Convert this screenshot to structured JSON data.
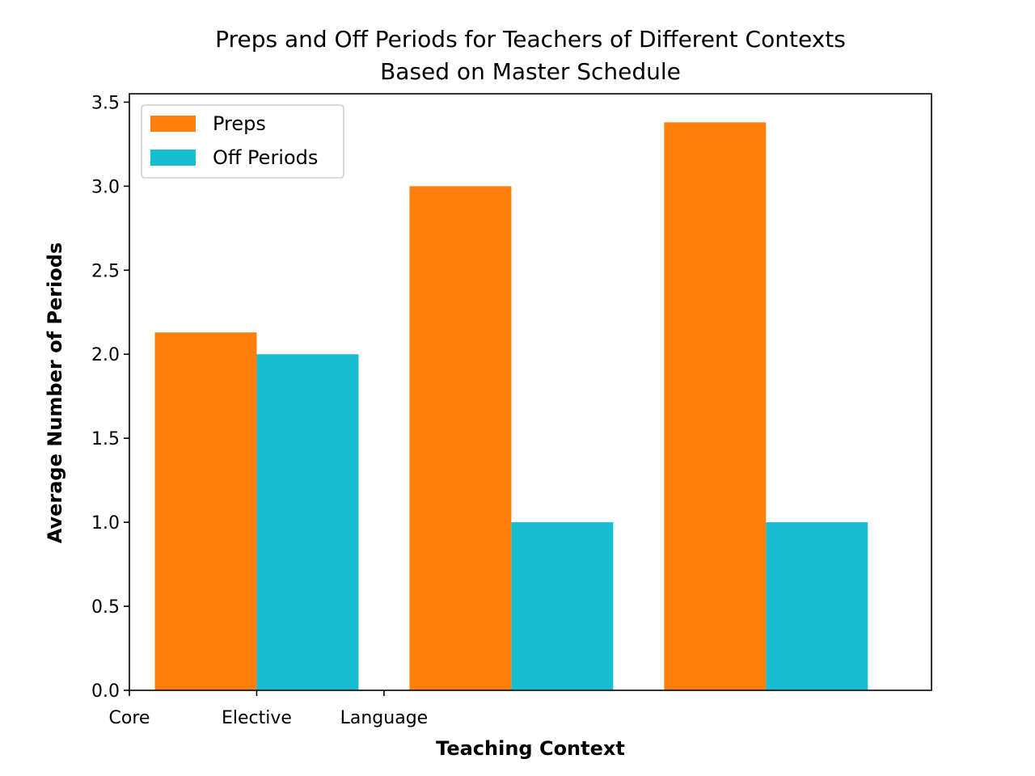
{
  "chart_data": {
    "type": "bar",
    "title": "Preps and Off Periods for Teachers of Different Contexts",
    "subtitle": "Based on Master Schedule",
    "xlabel": "Teaching Context",
    "ylabel": "Average Number of Periods",
    "categories": [
      "Core",
      "Elective",
      "Language"
    ],
    "bar_groups": 3,
    "series": [
      {
        "name": "Preps",
        "color": "#ff7f0e",
        "values": [
          2.13,
          3.0,
          3.38
        ]
      },
      {
        "name": "Off Periods",
        "color": "#17becf",
        "values": [
          2.0,
          1.0,
          1.0
        ]
      }
    ],
    "xlim": [
      0,
      3.15
    ],
    "ylim": [
      0,
      3.55
    ],
    "yticks": [
      "0.0",
      "0.5",
      "1.0",
      "1.5",
      "2.0",
      "2.5",
      "3.0",
      "3.5"
    ],
    "xtick_positions": [
      0,
      0.5,
      1.0
    ],
    "legend_position": "upper left",
    "grid": false
  }
}
